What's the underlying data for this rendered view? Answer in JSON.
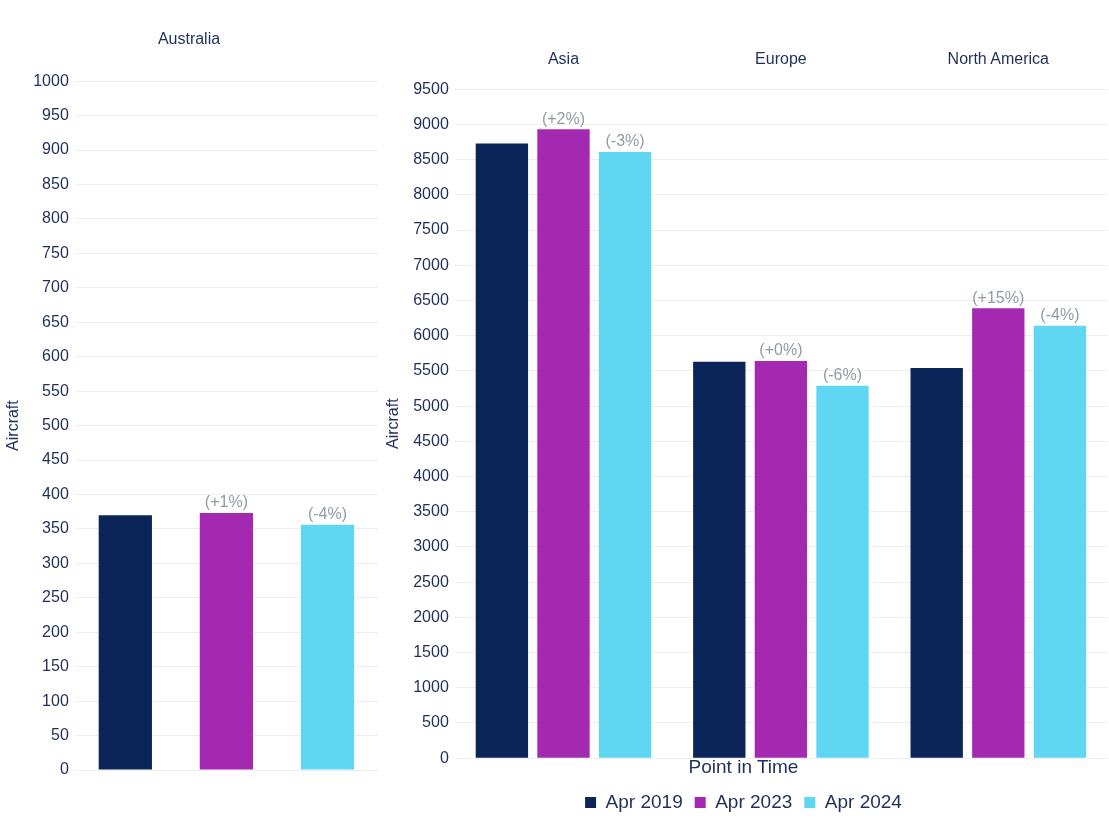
{
  "chart_data": [
    {
      "type": "bar",
      "title": "Australia",
      "categories": [
        null,
        null,
        null
      ],
      "values": [
        370,
        373,
        356
      ],
      "colors": [
        "#0b2559",
        "#a32ab0",
        "#5fd6f2"
      ],
      "ylabel": "Aircraft",
      "ylim": [
        0,
        1000
      ],
      "yticks": [
        0,
        50,
        100,
        150,
        200,
        250,
        300,
        350,
        400,
        450,
        500,
        550,
        600,
        650,
        700,
        750,
        800,
        850,
        900,
        950,
        1000
      ],
      "grid": "y",
      "legend": false,
      "annotations": [
        {
          "text": "(+1%)",
          "y": 373
        },
        {
          "text": "(-4%)",
          "y": 356
        }
      ]
    },
    {
      "type": "bar",
      "categories": [
        "Asia",
        "Europe",
        "North America"
      ],
      "ylabel": "Aircraft",
      "ylim": [
        0,
        9500
      ],
      "yticks": [
        0,
        500,
        1000,
        1500,
        2000,
        2500,
        3000,
        3500,
        4000,
        4500,
        5000,
        5500,
        6000,
        6500,
        7000,
        7500,
        8000,
        8500,
        9000,
        9500
      ],
      "grid": "y",
      "legend": "bottom",
      "legend_title": "Point in Time",
      "series": [
        {
          "name": "Apr 2019",
          "color": "#0b2559",
          "values": [
            8730,
            5630,
            5540
          ]
        },
        {
          "name": "Apr 2023",
          "color": "#a32ab0",
          "values": [
            8930,
            5640,
            6390
          ]
        },
        {
          "name": "Apr 2024",
          "color": "#5fd6f2",
          "values": [
            8610,
            5290,
            6140
          ]
        }
      ],
      "annotations": [
        {
          "text": "(+2%)",
          "y": 8930
        },
        {
          "text": "(-3%)",
          "y": 8610
        },
        {
          "text": "(+0%)",
          "y": 5640
        },
        {
          "text": "(-6%)",
          "y": 5290
        },
        {
          "text": "(+15%)",
          "y": 6390
        },
        {
          "text": "(-4%)",
          "y": 6140
        }
      ]
    }
  ]
}
